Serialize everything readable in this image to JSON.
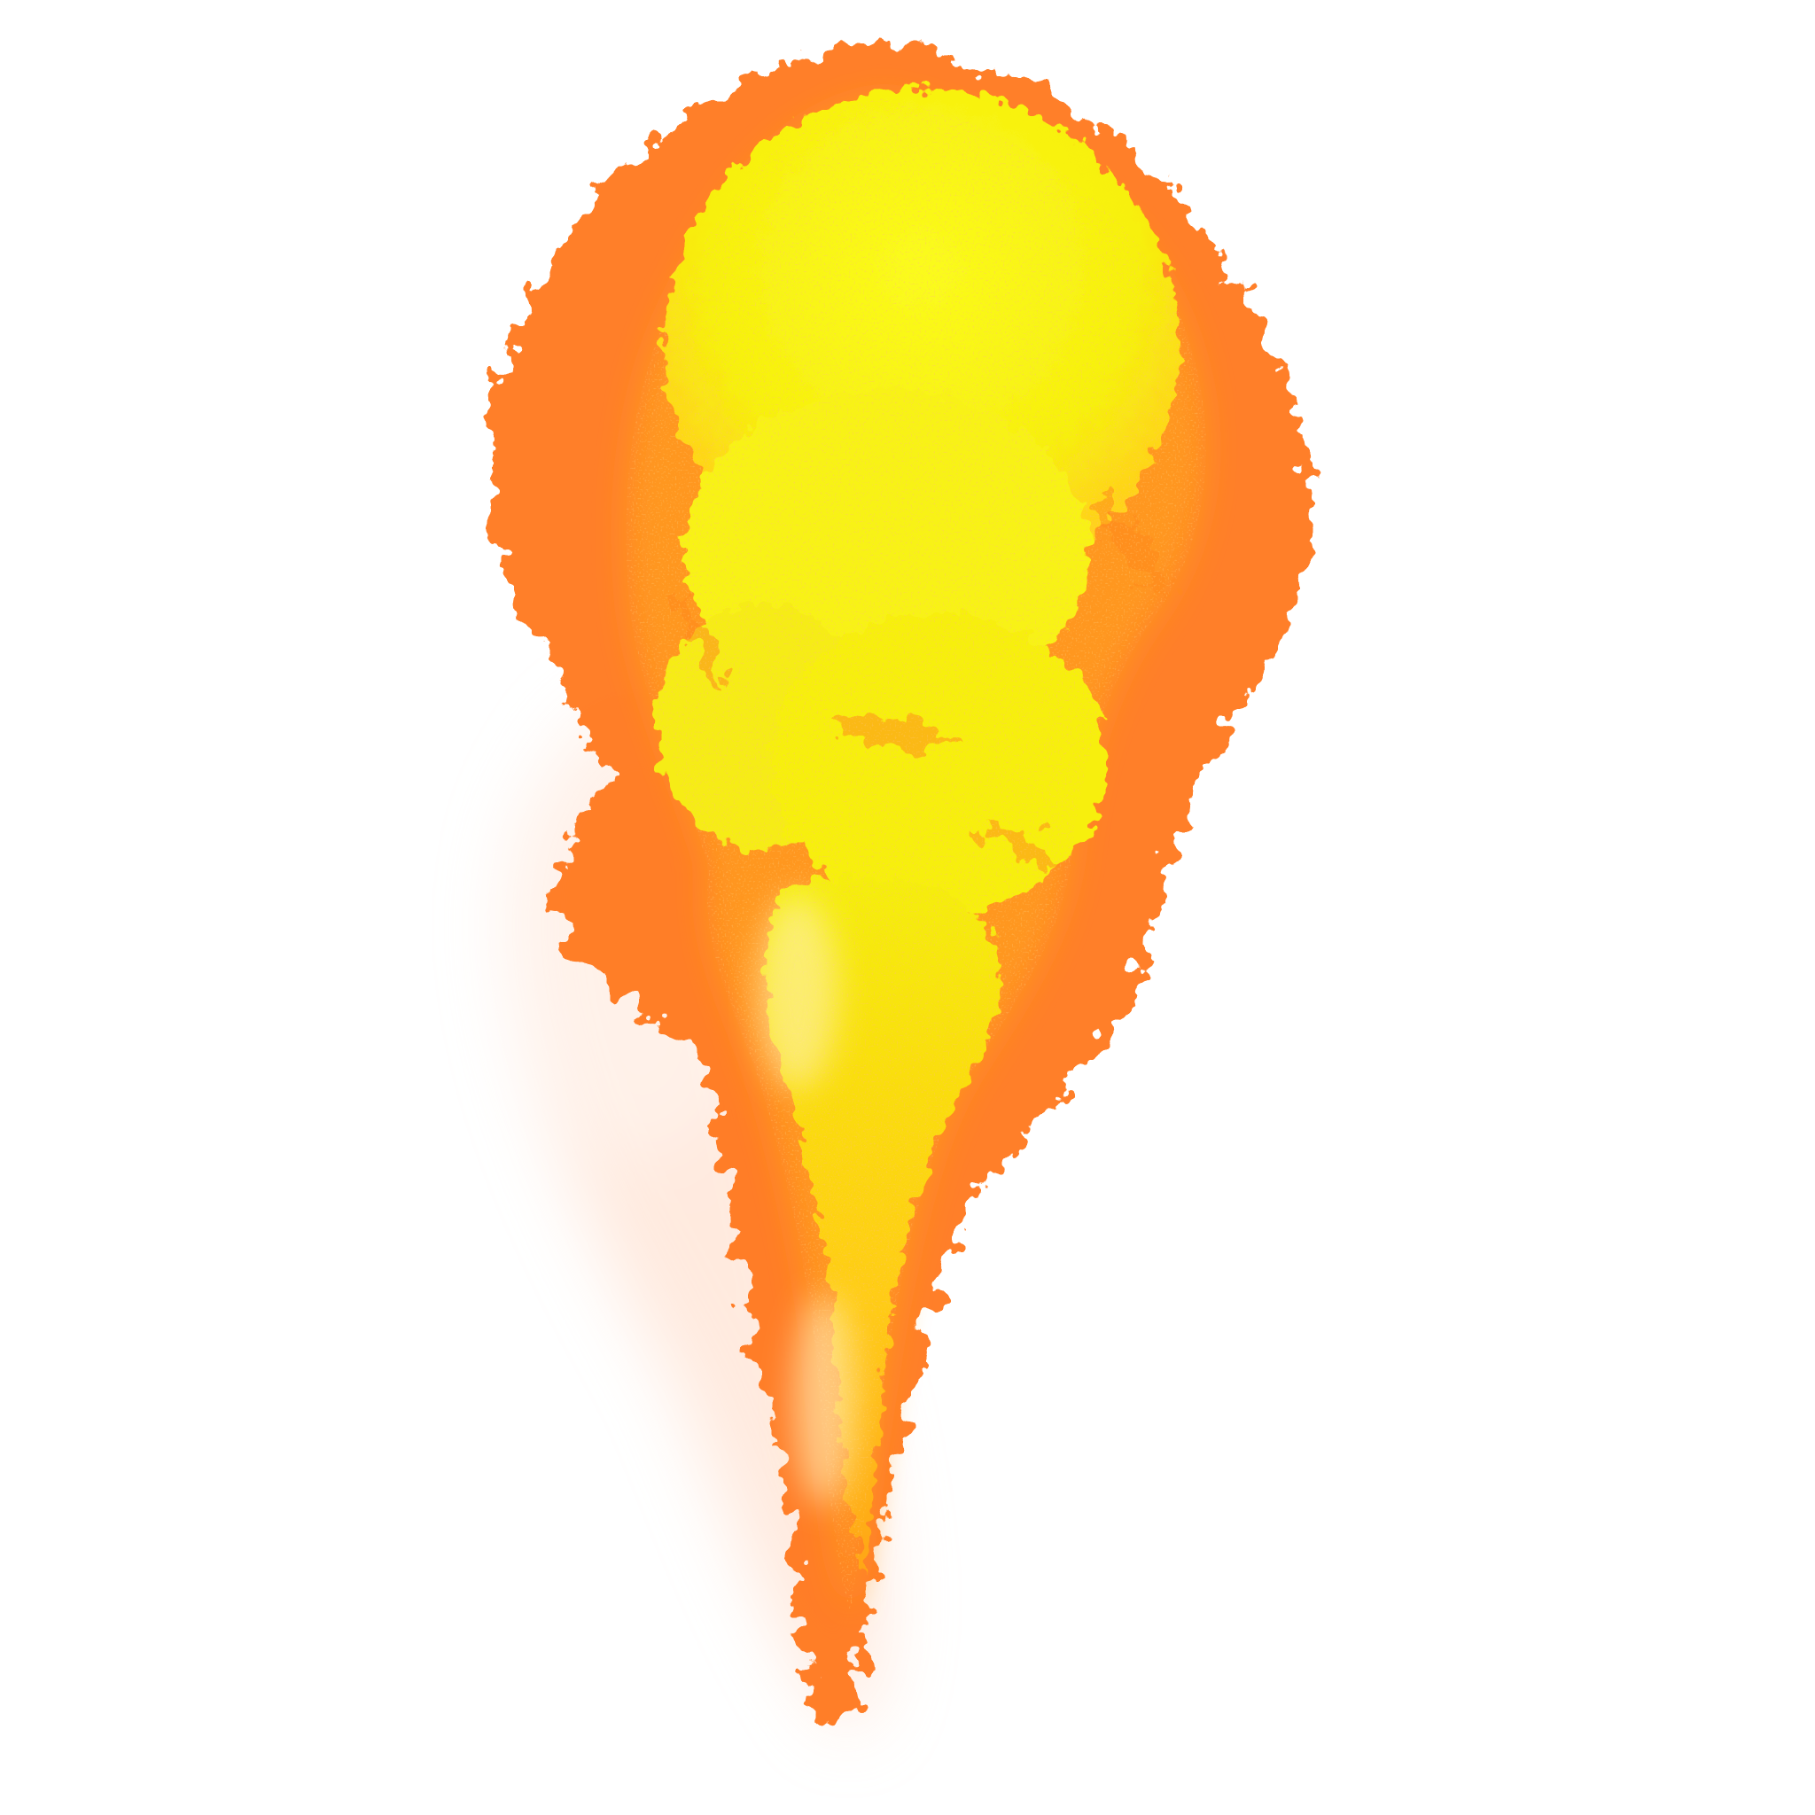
{
  "image": {
    "subject": "fireball-flame",
    "background_color": "#ffffff",
    "colors": {
      "core": "#f7f70f",
      "inner_glow": "#ffd21a",
      "mid": "#ff9a1f",
      "outer": "#ff6a12",
      "haze": "#ffd9c4"
    }
  }
}
